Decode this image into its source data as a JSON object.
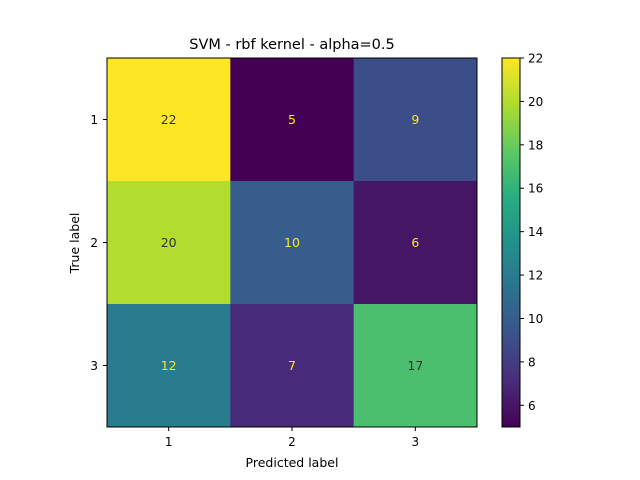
{
  "chart_data": {
    "type": "heatmap",
    "title": "SVM - rbf kernel - alpha=0.5",
    "xlabel": "Predicted label",
    "ylabel": "True label",
    "x_categories": [
      "1",
      "2",
      "3"
    ],
    "y_categories": [
      "1",
      "2",
      "3"
    ],
    "values": [
      [
        22,
        5,
        9
      ],
      [
        20,
        10,
        6
      ],
      [
        12,
        7,
        17
      ]
    ],
    "colormap": "viridis",
    "colorbar": {
      "range": [
        5,
        22
      ],
      "ticks": [
        "6",
        "8",
        "10",
        "12",
        "14",
        "16",
        "18",
        "20",
        "22"
      ]
    },
    "grid": false
  }
}
